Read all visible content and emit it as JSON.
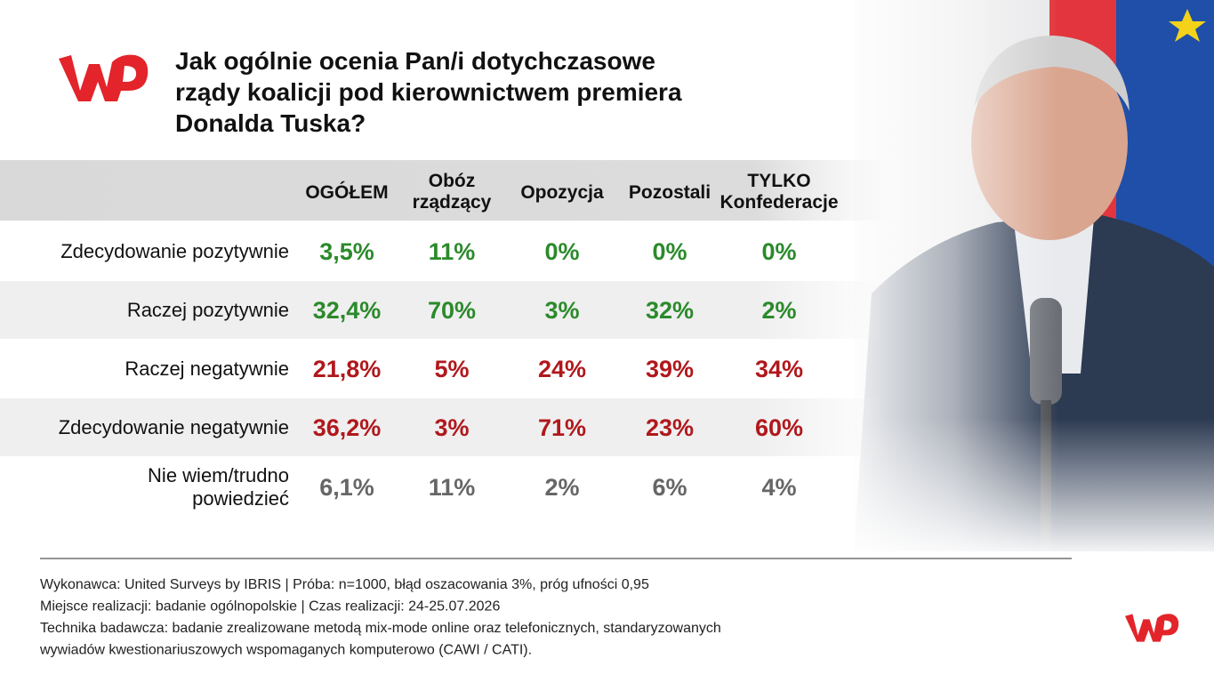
{
  "header": {
    "title_lines": [
      "Jak ogólnie ocenia Pan/i dotychczasowe",
      "rządy koalicji pod kierownictwem premiera",
      "Donalda Tuska?"
    ]
  },
  "table": {
    "columns": [
      [
        "OGÓŁEM"
      ],
      [
        "Obóz",
        "rządzący"
      ],
      [
        "Opozycja"
      ],
      [
        "Pozostali"
      ],
      [
        "TYLKO",
        "Konfederacje"
      ]
    ],
    "rows": [
      {
        "label": [
          "Zdecydowanie pozytywnie"
        ],
        "values": [
          "3,5%",
          "11%",
          "0%",
          "0%",
          "0%"
        ],
        "color": "#2b8a2b"
      },
      {
        "label": [
          "Raczej pozytywnie"
        ],
        "values": [
          "32,4%",
          "70%",
          "3%",
          "32%",
          "2%"
        ],
        "color": "#2b8a2b"
      },
      {
        "label": [
          "Raczej negatywnie"
        ],
        "values": [
          "21,8%",
          "5%",
          "24%",
          "39%",
          "34%"
        ],
        "color": "#b0181c"
      },
      {
        "label": [
          "Zdecydowanie negatywnie"
        ],
        "values": [
          "36,2%",
          "3%",
          "71%",
          "23%",
          "60%"
        ],
        "color": "#b0181c"
      },
      {
        "label": [
          "Nie wiem/trudno",
          "powiedzieć"
        ],
        "values": [
          "6,1%",
          "11%",
          "2%",
          "6%",
          "4%"
        ],
        "color": "#666666"
      }
    ]
  },
  "footer": {
    "lines": [
      "Wykonawca: United Surveys by IBRIS | Próba: n=1000, błąd oszacowania 3%, próg ufności 0,95",
      "Miejsce realizacji: badanie ogólnopolskie | Czas realizacji: 24-25.07.2026",
      "Technika badawcza: badanie zrealizowane metodą mix-mode online oraz telefonicznych, standaryzowanych",
      "wywiadów kwestionariuszowych wspomaganych komputerowo (CAWI / CATI)."
    ]
  }
}
